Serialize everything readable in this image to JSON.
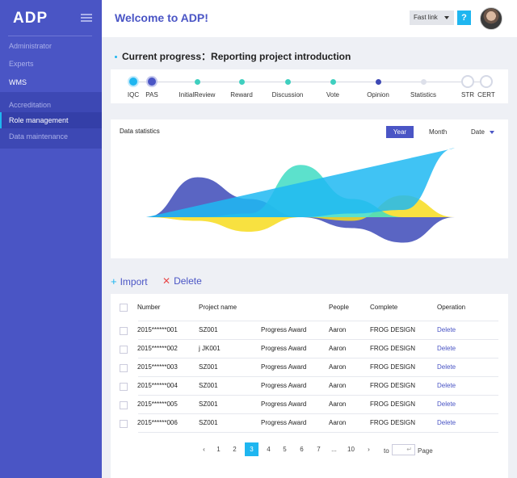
{
  "sidebar": {
    "logo": "ADP",
    "items": [
      {
        "label": "Administrator"
      },
      {
        "label": "Experts"
      },
      {
        "label": "WMS"
      }
    ],
    "subitems": [
      {
        "label": "Accreditation"
      },
      {
        "label": "Role management"
      },
      {
        "label": "Data maintenance"
      }
    ]
  },
  "header": {
    "welcome": "Welcome to ADP!",
    "fastlink": "Fast link",
    "help": "?"
  },
  "progress": {
    "title": "Current progress：Reporting project introduction",
    "steps": [
      {
        "label": "IQC",
        "state": "done"
      },
      {
        "label": "PAS",
        "state": "current"
      },
      {
        "label": "InitialReview",
        "state": "teal"
      },
      {
        "label": "Reward",
        "state": "teal"
      },
      {
        "label": "Discussion",
        "state": "teal"
      },
      {
        "label": "Vote",
        "state": "teal"
      },
      {
        "label": "Opinion",
        "state": "indigo"
      },
      {
        "label": "Statistics",
        "state": "pending"
      },
      {
        "label": "STR",
        "state": "ring"
      },
      {
        "label": "CERT",
        "state": "ring"
      }
    ]
  },
  "stats": {
    "title": "Data statistics",
    "tabs": {
      "year": "Year",
      "month": "Month",
      "date": "Date"
    }
  },
  "chart_data": {
    "type": "area",
    "series": [
      {
        "color": "#3d4ab8",
        "values": [
          0,
          0.55,
          0.25,
          0,
          -0.15,
          -0.35,
          0
        ]
      },
      {
        "color": "#f7dc1e",
        "values": [
          0,
          -0.05,
          -0.2,
          0,
          -0.05,
          0.3,
          0
        ]
      },
      {
        "color": "#3fdcc3",
        "values": [
          0,
          0,
          0.05,
          0.72,
          0.25,
          0,
          0
        ]
      },
      {
        "color": "#1fb8f2",
        "values": [
          0,
          0,
          0,
          0,
          0.05,
          0.1,
          0.95
        ]
      }
    ]
  },
  "actions": {
    "import": "Import",
    "delete": "Delete",
    "import_icon": "+",
    "delete_icon": "✕"
  },
  "table": {
    "headers": [
      "Number",
      "Project name",
      "People",
      "Complete",
      "Operation"
    ],
    "rows": [
      {
        "number": "2015******001",
        "project": "SZ001",
        "award": "Progress Award",
        "people": "Aaron",
        "complete": "FROG DESIGN",
        "op": "Delete"
      },
      {
        "number": "2015******002",
        "project": "j JK001",
        "award": "Progress Award",
        "people": "Aaron",
        "complete": "FROG DESIGN",
        "op": "Delete"
      },
      {
        "number": "2015******003",
        "project": "SZ001",
        "award": "Progress Award",
        "people": "Aaron",
        "complete": "FROG DESIGN",
        "op": "Delete"
      },
      {
        "number": "2015******004",
        "project": "SZ001",
        "award": "Progress Award",
        "people": "Aaron",
        "complete": "FROG DESIGN",
        "op": "Delete"
      },
      {
        "number": "2015******005",
        "project": "SZ001",
        "award": "Progress Award",
        "people": "Aaron",
        "complete": "FROG DESIGN",
        "op": "Delete"
      },
      {
        "number": "2015******006",
        "project": "SZ001",
        "award": "Progress Award",
        "people": "Aaron",
        "complete": "FROG DESIGN",
        "op": "Delete"
      }
    ]
  },
  "pagination": {
    "prev": "‹",
    "pages": [
      "1",
      "2",
      "3",
      "4",
      "5",
      "6",
      "7",
      "...",
      "10"
    ],
    "current": "3",
    "next": "›",
    "to": "to",
    "page": "Page"
  }
}
